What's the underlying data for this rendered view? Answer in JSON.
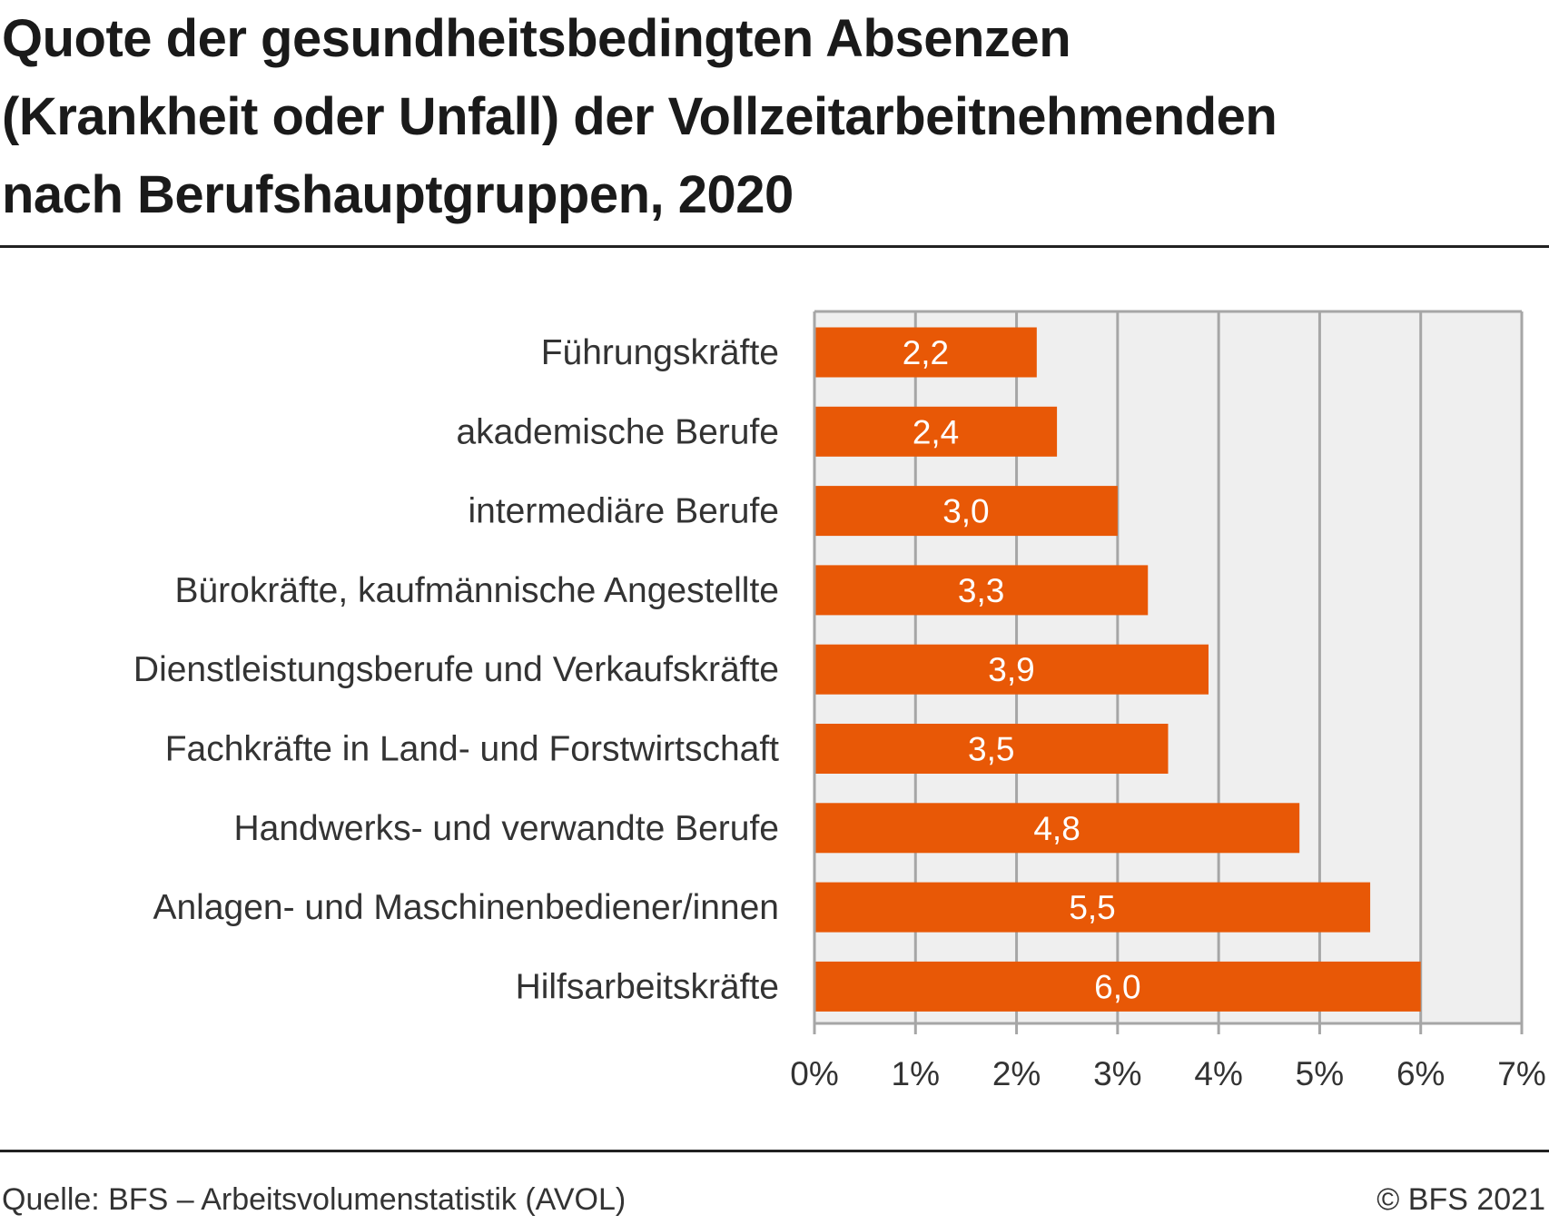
{
  "title": "Quote der gesundheitsbedingten Absenzen\n(Krankheit oder Unfall) der Vollzeitarbeitnehmenden\nnach  Berufshauptgruppen, 2020",
  "source": "Quelle: BFS – Arbeitsvolumenstatistik (AVOL)",
  "copyright": "© BFS 2021",
  "colors": {
    "bar": "#e85806",
    "plot_background": "#efefef",
    "gridline": "#a6a6a6",
    "bar_label": "#ffffff"
  },
  "chart_data": {
    "type": "bar",
    "orientation": "horizontal",
    "categories": [
      "Führungskräfte",
      "akademische Berufe",
      "intermediäre Berufe",
      "Bürokräfte, kaufmännische Angestellte",
      "Dienstleistungsberufe und Verkaufskräfte",
      "Fachkräfte in Land- und Forstwirtschaft",
      "Handwerks- und verwandte Berufe",
      "Anlagen- und Maschinenbediener/innen",
      "Hilfsarbeitskräfte"
    ],
    "values": [
      2.2,
      2.4,
      3.0,
      3.3,
      3.9,
      3.5,
      4.8,
      5.5,
      6.0
    ],
    "value_labels": [
      "2,2",
      "2,4",
      "3,0",
      "3,3",
      "3,9",
      "3,5",
      "4,8",
      "5,5",
      "6,0"
    ],
    "xlim": [
      0,
      7
    ],
    "xticks": [
      0,
      1,
      2,
      3,
      4,
      5,
      6,
      7
    ],
    "xtick_labels": [
      "0%",
      "1%",
      "2%",
      "3%",
      "4%",
      "5%",
      "6%",
      "7%"
    ],
    "grid": true,
    "legend": false
  }
}
